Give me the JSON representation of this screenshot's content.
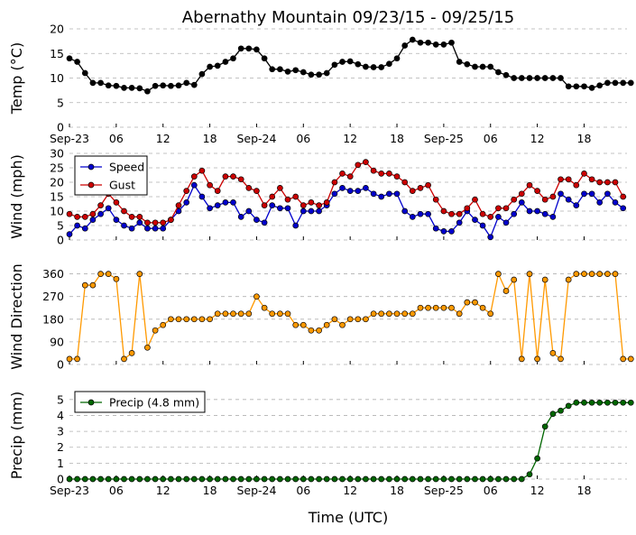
{
  "figure": {
    "title": "Abernathy Mountain 09/23/15 - 09/25/15",
    "xlabel": "Time (UTC)",
    "xticks": [
      "Sep-23",
      "06",
      "12",
      "18",
      "Sep-24",
      "06",
      "12",
      "18",
      "Sep-25",
      "06",
      "12",
      "18"
    ]
  },
  "chart_data": [
    {
      "type": "line",
      "id": "temp",
      "ylabel": "Temp (°C)",
      "ylim": [
        0,
        20
      ],
      "yticks": [
        0,
        5,
        10,
        15,
        20
      ],
      "x_unit": "hours since Sep-23 00:00 UTC",
      "xlim": [
        0,
        71.5
      ],
      "x_step": 1,
      "series": [
        {
          "name": "Temp",
          "color": "#000000",
          "values": [
            14,
            13.3,
            11,
            9,
            9,
            8.5,
            8.4,
            8,
            8,
            7.9,
            7.3,
            8.4,
            8.5,
            8.4,
            8.5,
            9,
            8.6,
            10.8,
            12.3,
            12.5,
            13.3,
            14,
            16,
            16,
            15.8,
            14,
            11.8,
            11.8,
            11.3,
            11.6,
            11.2,
            10.7,
            10.7,
            11,
            12.7,
            13.3,
            13.4,
            12.8,
            12.3,
            12.2,
            12.2,
            12.9,
            14,
            16.6,
            17.8,
            17.2,
            17.2,
            16.8,
            16.8,
            17.2,
            13.3,
            12.8,
            12.3,
            12.3,
            12.3,
            11.2,
            10.6,
            10,
            10,
            10,
            10,
            10,
            10,
            10,
            8.3,
            8.3,
            8.3,
            8,
            8.5,
            9,
            9,
            9,
            9
          ]
        }
      ]
    },
    {
      "type": "line",
      "id": "wind",
      "ylabel": "Wind (mph)",
      "ylim": [
        0,
        30
      ],
      "yticks": [
        0,
        5,
        10,
        15,
        20,
        25,
        30
      ],
      "x_unit": "hours since Sep-23 00:00 UTC",
      "xlim": [
        0,
        71.5
      ],
      "x_step": 1,
      "legend": "top-left",
      "series": [
        {
          "name": "Speed",
          "color": "#0000cc",
          "values": [
            2,
            5,
            4,
            7,
            9,
            11,
            7,
            5,
            4,
            6,
            4,
            4,
            4,
            7,
            10,
            13,
            19,
            15,
            11,
            12,
            13,
            13,
            8,
            10,
            7,
            6,
            12,
            11,
            11,
            5,
            10,
            10,
            10,
            12,
            16,
            18,
            17,
            17,
            18,
            16,
            15,
            16,
            16,
            10,
            8,
            9,
            9,
            4,
            3,
            3,
            6,
            10,
            7,
            5,
            1,
            8,
            6,
            9,
            13,
            10,
            10,
            9,
            8,
            16,
            14,
            12,
            16,
            16,
            13,
            16,
            13,
            11
          ]
        },
        {
          "name": "Gust",
          "color": "#cc0000",
          "values": [
            9,
            8,
            8,
            9,
            12,
            16,
            13,
            10,
            8,
            8,
            6,
            6,
            6,
            7,
            12,
            17,
            22,
            24,
            19,
            17,
            22,
            22,
            21,
            18,
            17,
            12,
            15,
            18,
            14,
            15,
            12,
            13,
            12,
            13,
            20,
            23,
            22,
            26,
            27,
            24,
            23,
            23,
            22,
            20,
            17,
            18,
            19,
            14,
            10,
            9,
            9,
            11,
            14,
            9,
            8,
            11,
            11,
            14,
            16,
            19,
            17,
            14,
            15,
            21,
            21,
            19,
            23,
            21,
            20,
            20,
            20,
            15
          ]
        }
      ]
    },
    {
      "type": "scatter-line",
      "id": "wdir",
      "ylabel": "Wind Direction",
      "ylim": [
        0,
        380
      ],
      "yticks": [
        0,
        90,
        180,
        270,
        360
      ],
      "x_unit": "hours since Sep-23 00:00 UTC",
      "xlim": [
        0,
        71.5
      ],
      "x_step": 1,
      "series": [
        {
          "name": "Direction",
          "color": "#ff9900",
          "values": [
            22,
            22,
            315,
            315,
            360,
            360,
            340,
            22,
            45,
            360,
            67,
            135,
            157,
            180,
            180,
            180,
            180,
            180,
            180,
            202,
            202,
            202,
            202,
            202,
            270,
            225,
            202,
            202,
            202,
            157,
            157,
            135,
            135,
            157,
            180,
            157,
            180,
            180,
            180,
            202,
            202,
            202,
            202,
            202,
            202,
            225,
            225,
            225,
            225,
            225,
            202,
            247,
            247,
            225,
            202,
            360,
            292,
            337,
            22,
            360,
            22,
            337,
            45,
            22,
            337,
            360,
            360,
            360,
            360,
            360,
            360,
            22,
            22
          ]
        }
      ]
    },
    {
      "type": "line",
      "id": "precip",
      "ylabel": "Precip (mm)",
      "ylim": [
        0,
        5.5
      ],
      "yticks": [
        0,
        1,
        2,
        3,
        4,
        5
      ],
      "x_unit": "hours since Sep-23 00:00 UTC",
      "xlim": [
        0,
        71.5
      ],
      "x_step": 1,
      "legend": "top-left",
      "series": [
        {
          "name": "Precip (4.8 mm)",
          "color": "#006600",
          "values": [
            0,
            0,
            0,
            0,
            0,
            0,
            0,
            0,
            0,
            0,
            0,
            0,
            0,
            0,
            0,
            0,
            0,
            0,
            0,
            0,
            0,
            0,
            0,
            0,
            0,
            0,
            0,
            0,
            0,
            0,
            0,
            0,
            0,
            0,
            0,
            0,
            0,
            0,
            0,
            0,
            0,
            0,
            0,
            0,
            0,
            0,
            0,
            0,
            0,
            0,
            0,
            0,
            0,
            0,
            0,
            0,
            0,
            0,
            0,
            0.3,
            1.3,
            3.3,
            4.1,
            4.3,
            4.6,
            4.8,
            4.8,
            4.8,
            4.8,
            4.8,
            4.8,
            4.8,
            4.8
          ]
        }
      ]
    }
  ]
}
